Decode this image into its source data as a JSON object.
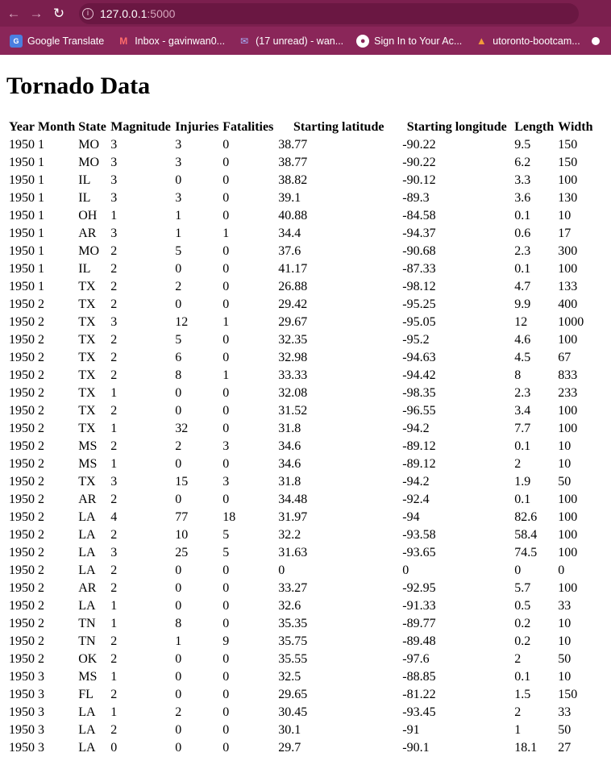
{
  "browser": {
    "url_host": "127.0.0.1",
    "url_port": ":5000",
    "bookmarks": [
      {
        "label": "Google Translate",
        "icon": "translate-icon"
      },
      {
        "label": "Inbox - gavinwan0...",
        "icon": "gmail-icon"
      },
      {
        "label": "(17 unread) - wan...",
        "icon": "yahoo-icon"
      },
      {
        "label": "Sign In to Your Ac...",
        "icon": "globe-icon"
      },
      {
        "label": "utoronto-bootcam...",
        "icon": "gitlab-icon"
      }
    ]
  },
  "page": {
    "title": "Tornado Data",
    "columns": [
      "Year",
      "Month",
      "State",
      "Magnitude",
      "Injuries",
      "Fatalities",
      "Starting latitude",
      "Starting longitude",
      "Length",
      "Width"
    ],
    "rows": [
      [
        "1950",
        "1",
        "MO",
        "3",
        "3",
        "0",
        "38.77",
        "-90.22",
        "9.5",
        "150"
      ],
      [
        "1950",
        "1",
        "MO",
        "3",
        "3",
        "0",
        "38.77",
        "-90.22",
        "6.2",
        "150"
      ],
      [
        "1950",
        "1",
        "IL",
        "3",
        "0",
        "0",
        "38.82",
        "-90.12",
        "3.3",
        "100"
      ],
      [
        "1950",
        "1",
        "IL",
        "3",
        "3",
        "0",
        "39.1",
        "-89.3",
        "3.6",
        "130"
      ],
      [
        "1950",
        "1",
        "OH",
        "1",
        "1",
        "0",
        "40.88",
        "-84.58",
        "0.1",
        "10"
      ],
      [
        "1950",
        "1",
        "AR",
        "3",
        "1",
        "1",
        "34.4",
        "-94.37",
        "0.6",
        "17"
      ],
      [
        "1950",
        "1",
        "MO",
        "2",
        "5",
        "0",
        "37.6",
        "-90.68",
        "2.3",
        "300"
      ],
      [
        "1950",
        "1",
        "IL",
        "2",
        "0",
        "0",
        "41.17",
        "-87.33",
        "0.1",
        "100"
      ],
      [
        "1950",
        "1",
        "TX",
        "2",
        "2",
        "0",
        "26.88",
        "-98.12",
        "4.7",
        "133"
      ],
      [
        "1950",
        "2",
        "TX",
        "2",
        "0",
        "0",
        "29.42",
        "-95.25",
        "9.9",
        "400"
      ],
      [
        "1950",
        "2",
        "TX",
        "3",
        "12",
        "1",
        "29.67",
        "-95.05",
        "12",
        "1000"
      ],
      [
        "1950",
        "2",
        "TX",
        "2",
        "5",
        "0",
        "32.35",
        "-95.2",
        "4.6",
        "100"
      ],
      [
        "1950",
        "2",
        "TX",
        "2",
        "6",
        "0",
        "32.98",
        "-94.63",
        "4.5",
        "67"
      ],
      [
        "1950",
        "2",
        "TX",
        "2",
        "8",
        "1",
        "33.33",
        "-94.42",
        "8",
        "833"
      ],
      [
        "1950",
        "2",
        "TX",
        "1",
        "0",
        "0",
        "32.08",
        "-98.35",
        "2.3",
        "233"
      ],
      [
        "1950",
        "2",
        "TX",
        "2",
        "0",
        "0",
        "31.52",
        "-96.55",
        "3.4",
        "100"
      ],
      [
        "1950",
        "2",
        "TX",
        "1",
        "32",
        "0",
        "31.8",
        "-94.2",
        "7.7",
        "100"
      ],
      [
        "1950",
        "2",
        "MS",
        "2",
        "2",
        "3",
        "34.6",
        "-89.12",
        "0.1",
        "10"
      ],
      [
        "1950",
        "2",
        "MS",
        "1",
        "0",
        "0",
        "34.6",
        "-89.12",
        "2",
        "10"
      ],
      [
        "1950",
        "2",
        "TX",
        "3",
        "15",
        "3",
        "31.8",
        "-94.2",
        "1.9",
        "50"
      ],
      [
        "1950",
        "2",
        "AR",
        "2",
        "0",
        "0",
        "34.48",
        "-92.4",
        "0.1",
        "100"
      ],
      [
        "1950",
        "2",
        "LA",
        "4",
        "77",
        "18",
        "31.97",
        "-94",
        "82.6",
        "100"
      ],
      [
        "1950",
        "2",
        "LA",
        "2",
        "10",
        "5",
        "32.2",
        "-93.58",
        "58.4",
        "100"
      ],
      [
        "1950",
        "2",
        "LA",
        "3",
        "25",
        "5",
        "31.63",
        "-93.65",
        "74.5",
        "100"
      ],
      [
        "1950",
        "2",
        "LA",
        "2",
        "0",
        "0",
        "0",
        "0",
        "0",
        "0"
      ],
      [
        "1950",
        "2",
        "AR",
        "2",
        "0",
        "0",
        "33.27",
        "-92.95",
        "5.7",
        "100"
      ],
      [
        "1950",
        "2",
        "LA",
        "1",
        "0",
        "0",
        "32.6",
        "-91.33",
        "0.5",
        "33"
      ],
      [
        "1950",
        "2",
        "TN",
        "1",
        "8",
        "0",
        "35.35",
        "-89.77",
        "0.2",
        "10"
      ],
      [
        "1950",
        "2",
        "TN",
        "2",
        "1",
        "9",
        "35.75",
        "-89.48",
        "0.2",
        "10"
      ],
      [
        "1950",
        "2",
        "OK",
        "2",
        "0",
        "0",
        "35.55",
        "-97.6",
        "2",
        "50"
      ],
      [
        "1950",
        "3",
        "MS",
        "1",
        "0",
        "0",
        "32.5",
        "-88.85",
        "0.1",
        "10"
      ],
      [
        "1950",
        "3",
        "FL",
        "2",
        "0",
        "0",
        "29.65",
        "-81.22",
        "1.5",
        "150"
      ],
      [
        "1950",
        "3",
        "LA",
        "1",
        "2",
        "0",
        "30.45",
        "-93.45",
        "2",
        "33"
      ],
      [
        "1950",
        "3",
        "LA",
        "2",
        "0",
        "0",
        "30.1",
        "-91",
        "1",
        "50"
      ],
      [
        "1950",
        "3",
        "LA",
        "0",
        "0",
        "0",
        "29.7",
        "-90.1",
        "18.1",
        "27"
      ]
    ]
  }
}
